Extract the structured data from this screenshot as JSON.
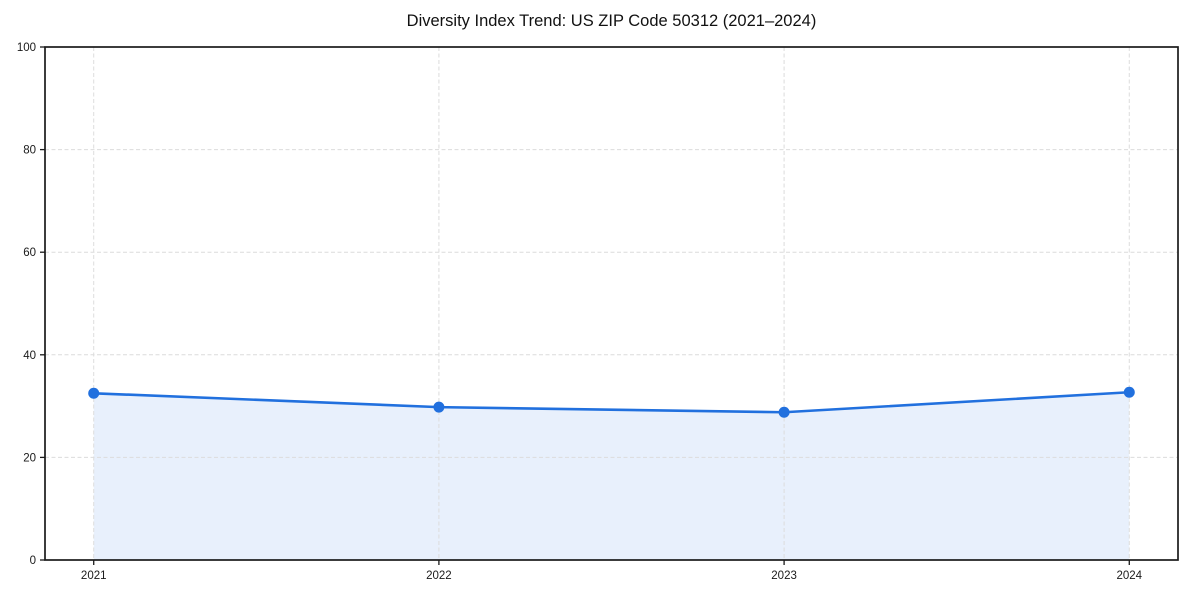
{
  "chart_data": {
    "type": "area",
    "categories": [
      "2021",
      "2022",
      "2023",
      "2024"
    ],
    "values": [
      32.5,
      29.8,
      28.8,
      32.7
    ],
    "series_name": "Diversity Index",
    "title": "Diversity Index Trend: US ZIP Code 50312 (2021–2024)",
    "xlabel": "",
    "ylabel": "",
    "ylim": [
      0,
      100
    ],
    "yticks": [
      0,
      20,
      40,
      60,
      80,
      100
    ],
    "grid": "dashed",
    "legend_position": "none",
    "markers": "circle",
    "colors": {
      "line": "#2170de",
      "marker": "#2170de",
      "fill_rgba": "rgba(33,112,222,0.10)",
      "grid": "#dcdcdc",
      "spine": "#1a1a1a",
      "tick_text": "#1a1a1a",
      "background": "#ffffff"
    }
  }
}
